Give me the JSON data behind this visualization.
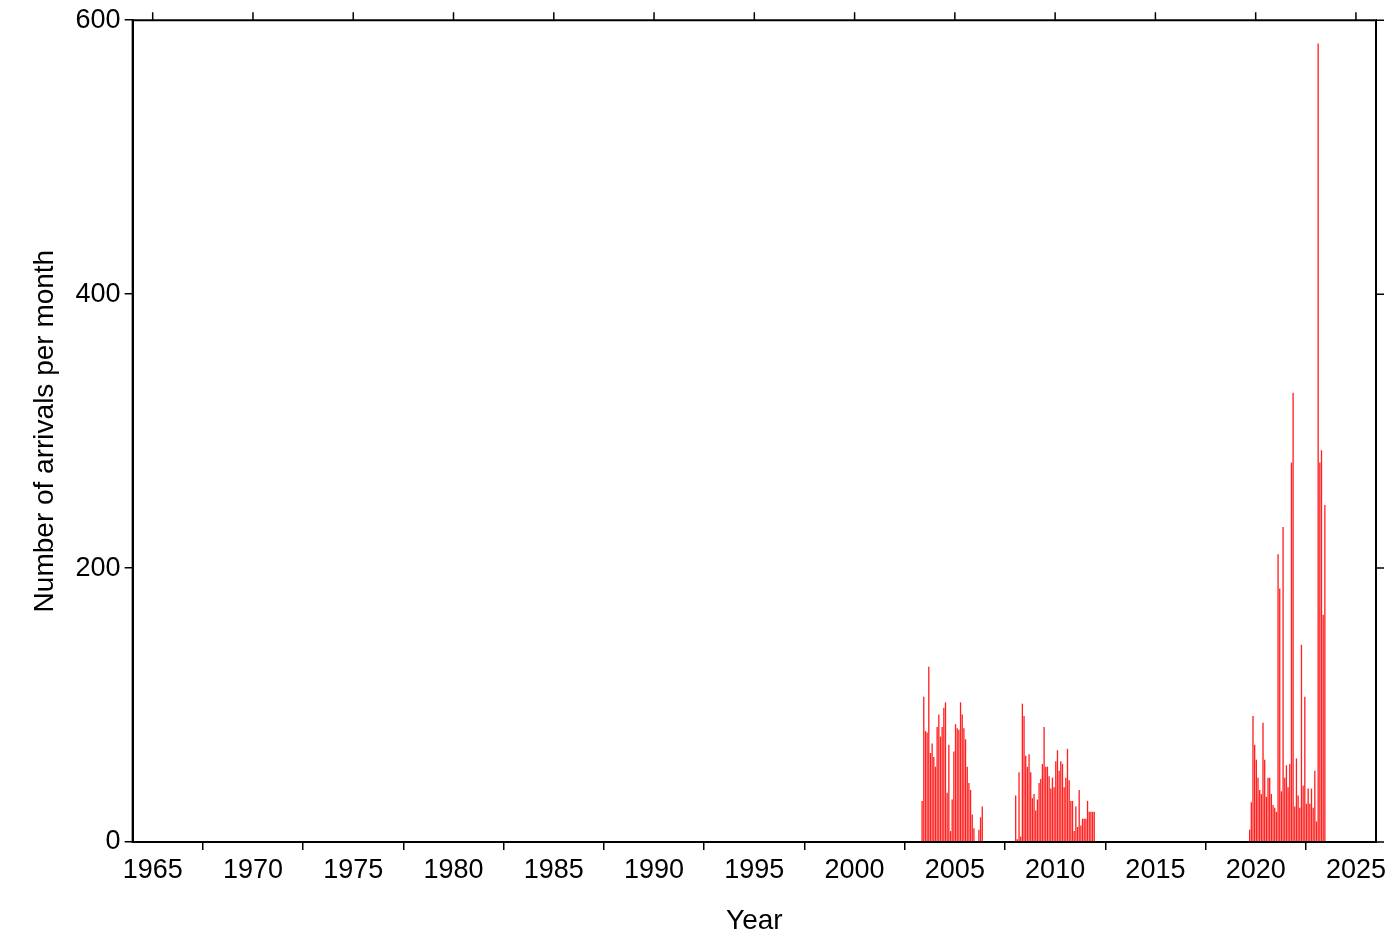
{
  "chart_data": {
    "type": "histogram",
    "xlabel": "Year",
    "ylabel": "Number of arrivals per month",
    "color": "#ff2020",
    "bins": [
      2003.333,
      2003.417,
      2003.5,
      2003.583,
      2003.667,
      2003.75,
      2003.833,
      2003.917,
      2004,
      2004.083,
      2004.167,
      2004.25,
      2004.333,
      2004.417,
      2004.5,
      2004.583,
      2004.667,
      2004.75,
      2004.833,
      2004.917,
      2005,
      2005.083,
      2005.167,
      2005.25,
      2005.333,
      2005.417,
      2005.5,
      2005.583,
      2005.667,
      2005.75,
      2005.833,
      2005.917,
      2006,
      2006.167,
      2006.25,
      2006.333,
      2006.417,
      2008,
      2008.083,
      2008.167,
      2008.25,
      2008.333,
      2008.417,
      2008.5,
      2008.583,
      2008.667,
      2008.75,
      2008.833,
      2008.917,
      2009,
      2009.083,
      2009.167,
      2009.25,
      2009.333,
      2009.417,
      2009.5,
      2009.583,
      2009.667,
      2009.75,
      2009.833,
      2009.917,
      2010,
      2010.083,
      2010.167,
      2010.25,
      2010.333,
      2010.417,
      2010.5,
      2010.583,
      2010.667,
      2010.75,
      2010.833,
      2010.917,
      2011,
      2011.083,
      2011.167,
      2011.25,
      2011.333,
      2011.417,
      2011.5,
      2011.583,
      2011.667,
      2011.75,
      2011.833,
      2011.917,
      2012,
      2019.667,
      2019.75,
      2019.833,
      2019.917,
      2020,
      2020.083,
      2020.167,
      2020.25,
      2020.333,
      2020.417,
      2020.5,
      2020.583,
      2020.667,
      2020.75,
      2020.833,
      2020.917,
      2021,
      2021.083,
      2021.167,
      2021.25,
      2021.333,
      2021.417,
      2021.5,
      2021.583,
      2021.667,
      2021.75,
      2021.833,
      2021.917,
      2022,
      2022.083,
      2022.167,
      2022.25,
      2022.333,
      2022.417,
      2022.5,
      2022.583,
      2022.667,
      2022.75,
      2022.833,
      2022.917,
      2023,
      2023.083,
      2023.167,
      2023.25,
      2023.333,
      2023.417,
      2023.5
    ],
    "values": [
      30,
      106,
      81,
      80,
      128,
      65,
      72,
      62,
      55,
      84,
      93,
      77,
      84,
      98,
      102,
      36,
      71,
      8,
      31,
      66,
      86,
      83,
      82,
      102,
      93,
      83,
      75,
      55,
      43,
      38,
      20,
      10,
      0,
      9,
      18,
      26,
      0,
      34,
      2,
      51,
      4,
      101,
      92,
      63,
      55,
      64,
      51,
      32,
      35,
      23,
      31,
      43,
      46,
      57,
      84,
      55,
      55,
      48,
      39,
      47,
      40,
      59,
      67,
      52,
      59,
      57,
      40,
      47,
      68,
      45,
      30,
      30,
      8,
      26,
      11,
      38,
      12,
      17,
      17,
      17,
      30,
      22,
      22,
      22,
      22,
      0,
      9,
      29,
      92,
      71,
      60,
      47,
      38,
      35,
      87,
      60,
      33,
      47,
      47,
      35,
      27,
      25,
      22,
      210,
      185,
      37,
      230,
      47,
      56,
      40,
      57,
      277,
      328,
      26,
      61,
      34,
      25,
      144,
      41,
      106,
      28,
      39,
      28,
      39,
      25,
      52,
      15,
      583,
      277,
      286,
      166,
      246
    ],
    "xlim": [
      1964,
      2026
    ],
    "xticks": [
      1965,
      1970,
      1975,
      1980,
      1985,
      1990,
      1995,
      2000,
      2005,
      2010,
      2015,
      2020,
      2025
    ],
    "ylim": [
      0,
      600
    ],
    "yticks": [
      0,
      200,
      400,
      600
    ],
    "grid": false,
    "legend": false
  }
}
